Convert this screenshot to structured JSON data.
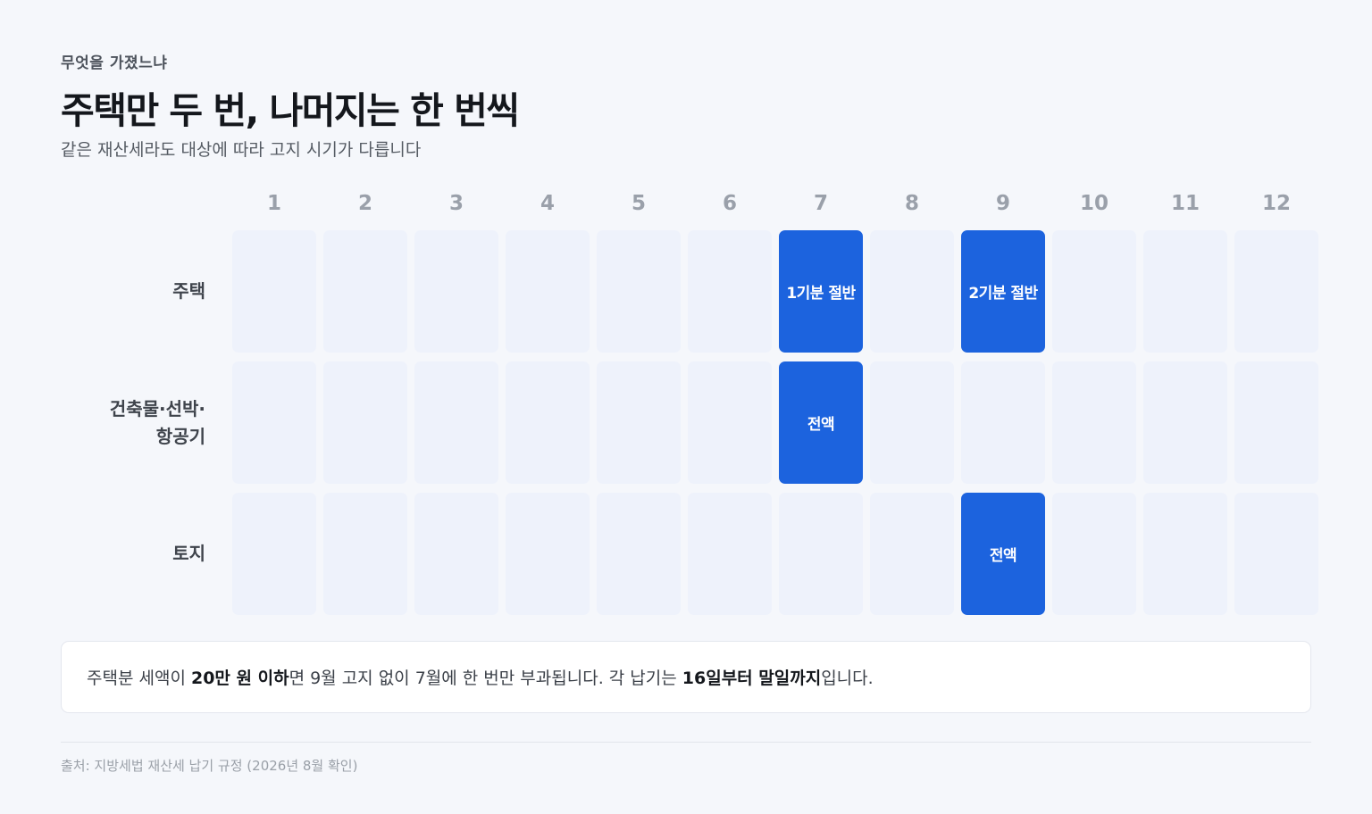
{
  "header": {
    "eyebrow": "무엇을 가졌느냐",
    "title": "주택만 두 번, 나머지는 한 번씩",
    "subtitle": "같은 재산세라도 대상에 따라 고지 시기가 다릅니다"
  },
  "calendar": {
    "months": [
      "1",
      "2",
      "3",
      "4",
      "5",
      "6",
      "7",
      "8",
      "9",
      "10",
      "11",
      "12"
    ],
    "rows": [
      {
        "label_lines": [
          "주택"
        ],
        "cells": [
          "",
          "",
          "",
          "",
          "",
          "",
          "1기분 절반",
          "",
          "2기분 절반",
          "",
          "",
          ""
        ],
        "active": [
          false,
          false,
          false,
          false,
          false,
          false,
          true,
          false,
          true,
          false,
          false,
          false
        ]
      },
      {
        "label_lines": [
          "건축물·선박·",
          "항공기"
        ],
        "cells": [
          "",
          "",
          "",
          "",
          "",
          "",
          "전액",
          "",
          "",
          "",
          "",
          ""
        ],
        "active": [
          false,
          false,
          false,
          false,
          false,
          false,
          true,
          false,
          false,
          false,
          false,
          false
        ]
      },
      {
        "label_lines": [
          "토지"
        ],
        "cells": [
          "",
          "",
          "",
          "",
          "",
          "",
          "",
          "",
          "전액",
          "",
          "",
          ""
        ],
        "active": [
          false,
          false,
          false,
          false,
          false,
          false,
          false,
          false,
          true,
          false,
          false,
          false
        ]
      }
    ],
    "active_color": "#1c63de",
    "empty_color": "#eef2fb"
  },
  "note": {
    "t1": "주택분 세액이 ",
    "b1": "20만 원 이하",
    "t2": "면 9월 고지 없이 7월에 한 번만 부과됩니다. 각 납기는 ",
    "b2": "16일부터 말일까지",
    "t3": "입니다."
  },
  "footer": {
    "source": "출처: 지방세법 재산세 납기 규정 (2026년 8월 확인)"
  }
}
